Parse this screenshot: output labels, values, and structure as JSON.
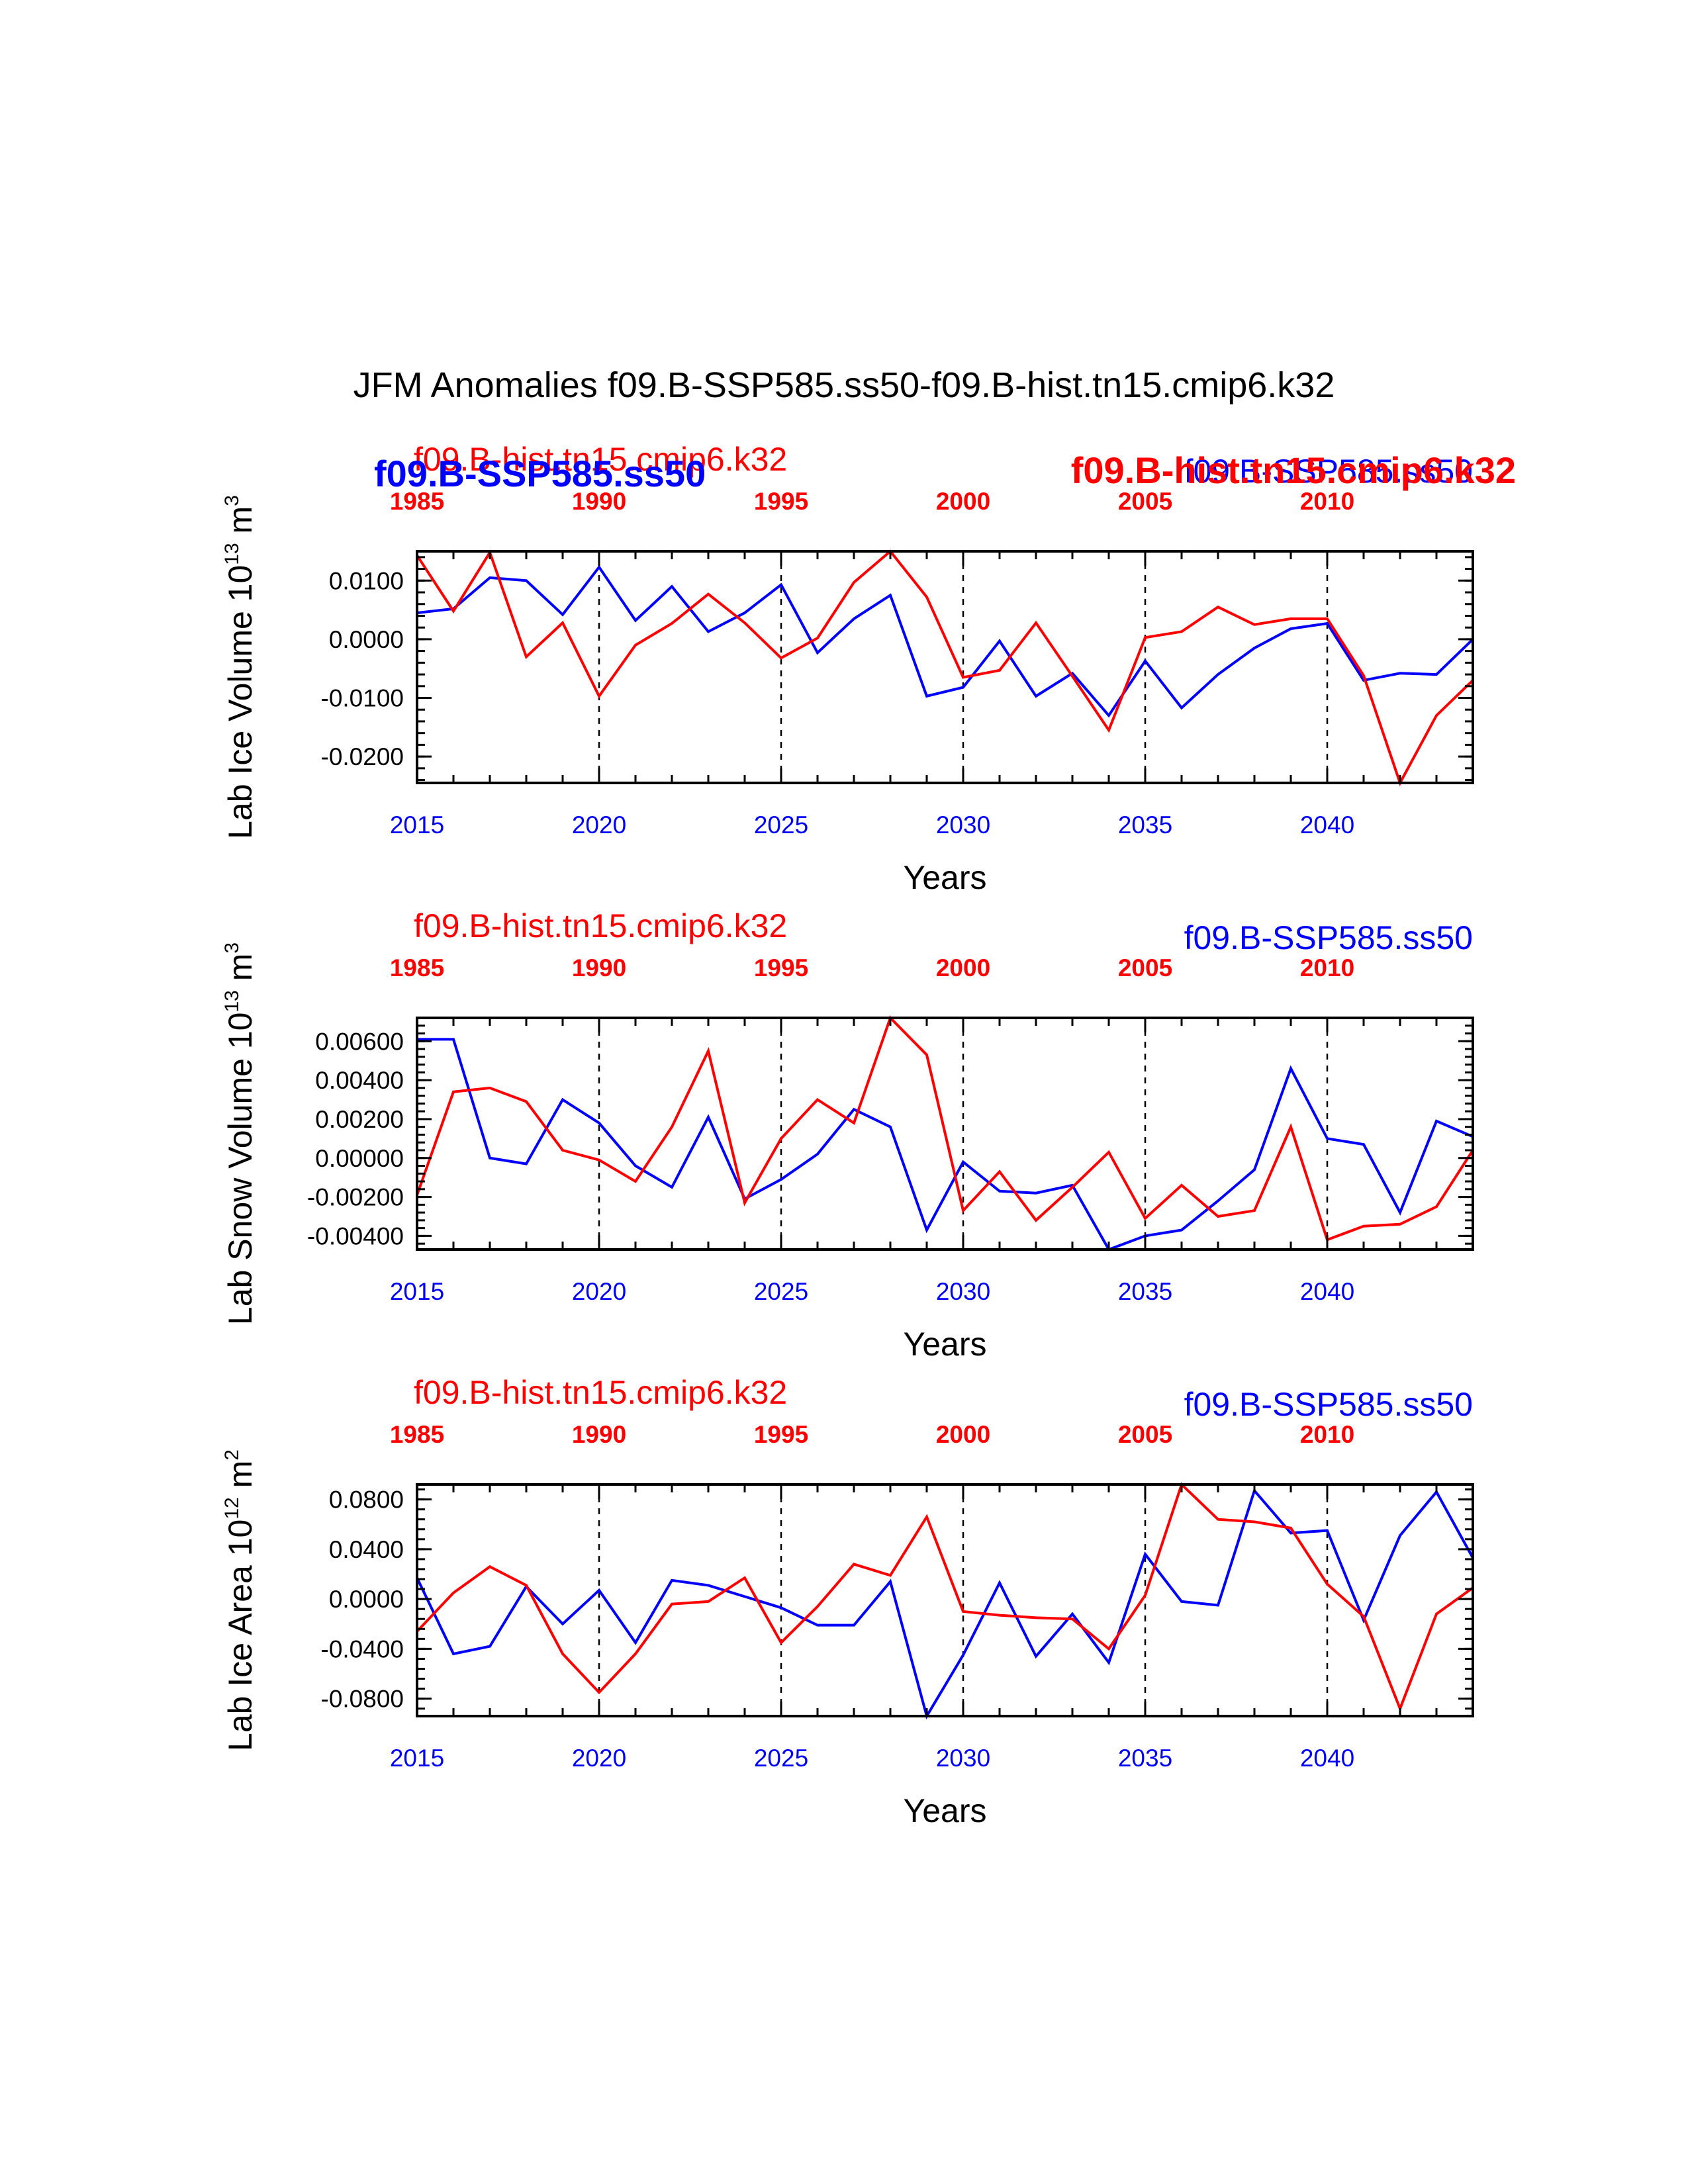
{
  "title": "JFM Anomalies f09.B-SSP585.ss50-f09.B-hist.tn15.cmip6.k32",
  "colors": {
    "ssp": "#0000ff",
    "hist": "#ff0000"
  },
  "chart_data": [
    {
      "type": "line",
      "ylabel_main": "Lab Ice Volume 10",
      "ylabel_exp": "13",
      "ylabel_unit": " m",
      "ylabel_unit_exp": "3",
      "xlabel": "Years",
      "ylim": [
        -0.0245,
        0.015
      ],
      "yticks": [
        0.01,
        0.0,
        -0.01,
        -0.02
      ],
      "ytick_labels": [
        "0.0100",
        "0.0000",
        "-0.0100",
        "-0.0200"
      ],
      "bottom_ticks": [
        "2015",
        "2020",
        "2025",
        "2030",
        "2035",
        "2040"
      ],
      "top_ticks": [
        "1985",
        "1990",
        "1995",
        "2000",
        "2005",
        "2010"
      ],
      "label_hist": "f09.B-hist.tn15.cmip6.k32",
      "label_ssp": "f09.B-SSP585.ss50",
      "label_ssp_bold": "f09.B-SSP585.ss50",
      "label_hist_bold": "f09.B-hist.tn15.cmip6.k32",
      "x_bottom": [
        2015,
        2016,
        2017,
        2018,
        2019,
        2020,
        2021,
        2022,
        2023,
        2024,
        2025,
        2026,
        2027,
        2028,
        2029,
        2030,
        2031,
        2032,
        2033,
        2034,
        2035,
        2036,
        2037,
        2038,
        2039,
        2040,
        2041,
        2042,
        2043,
        2044
      ],
      "series": [
        {
          "name": "f09.B-SSP585.ss50",
          "color": "#0000ff",
          "values": [
            0.0045,
            0.0052,
            0.0105,
            0.01,
            0.0042,
            0.0123,
            0.0032,
            0.009,
            0.0013,
            0.0045,
            0.0093,
            -0.0023,
            0.0035,
            0.0075,
            -0.0097,
            -0.0082,
            -0.0003,
            -0.0097,
            -0.0058,
            -0.013,
            -0.0037,
            -0.0117,
            -0.006,
            -0.0015,
            0.0018,
            0.0027,
            -0.007,
            -0.0058,
            -0.006,
            0.0
          ]
        },
        {
          "name": "f09.B-hist.tn15.cmip6.k32",
          "color": "#ff0000",
          "values": [
            0.0143,
            0.0048,
            0.0148,
            -0.003,
            0.0028,
            -0.0097,
            -0.001,
            0.0027,
            0.0077,
            0.0028,
            -0.0032,
            0.0002,
            0.0097,
            0.015,
            0.0072,
            -0.0065,
            -0.0053,
            0.0028,
            -0.0063,
            -0.0155,
            0.0003,
            0.0013,
            0.0055,
            0.0025,
            0.0035,
            0.0035,
            -0.0062,
            -0.0245,
            -0.013,
            -0.007
          ]
        }
      ]
    },
    {
      "type": "line",
      "ylabel_main": "Lab Snow Volume 10",
      "ylabel_exp": "13",
      "ylabel_unit": " m",
      "ylabel_unit_exp": "3",
      "xlabel": "Years",
      "ylim": [
        -0.0047,
        0.0072
      ],
      "yticks": [
        0.006,
        0.004,
        0.002,
        0.0,
        -0.002,
        -0.004
      ],
      "ytick_labels": [
        "0.00600",
        "0.00400",
        "0.00200",
        "0.00000",
        "-0.00200",
        "-0.00400"
      ],
      "bottom_ticks": [
        "2015",
        "2020",
        "2025",
        "2030",
        "2035",
        "2040"
      ],
      "top_ticks": [
        "1985",
        "1990",
        "1995",
        "2000",
        "2005",
        "2010"
      ],
      "label_hist": "f09.B-hist.tn15.cmip6.k32",
      "label_ssp": "f09.B-SSP585.ss50",
      "x_bottom": [
        2015,
        2016,
        2017,
        2018,
        2019,
        2020,
        2021,
        2022,
        2023,
        2024,
        2025,
        2026,
        2027,
        2028,
        2029,
        2030,
        2031,
        2032,
        2033,
        2034,
        2035,
        2036,
        2037,
        2038,
        2039,
        2040,
        2041,
        2042,
        2043,
        2044
      ],
      "series": [
        {
          "name": "f09.B-SSP585.ss50",
          "color": "#0000ff",
          "values": [
            0.0061,
            0.0061,
            0.0,
            -0.0003,
            0.003,
            0.0018,
            -0.0004,
            -0.0015,
            0.0021,
            -0.0021,
            -0.0011,
            0.0002,
            0.0025,
            0.0016,
            -0.0037,
            -0.0002,
            -0.0017,
            -0.0018,
            -0.0014,
            -0.0047,
            -0.004,
            -0.0037,
            -0.0022,
            -0.0006,
            0.0046,
            0.001,
            0.0007,
            -0.0028,
            0.0019,
            0.0011
          ]
        },
        {
          "name": "f09.B-hist.tn15.cmip6.k32",
          "color": "#ff0000",
          "values": [
            -0.0019,
            0.0034,
            0.0036,
            0.0029,
            0.0004,
            -0.0001,
            -0.0012,
            0.0016,
            0.0055,
            -0.0023,
            0.001,
            0.003,
            0.0018,
            0.0072,
            0.0053,
            -0.0027,
            -0.0007,
            -0.0032,
            -0.0015,
            0.0003,
            -0.0031,
            -0.0014,
            -0.003,
            -0.0027,
            0.0016,
            -0.0042,
            -0.0035,
            -0.0034,
            -0.0025,
            0.0004
          ]
        }
      ]
    },
    {
      "type": "line",
      "ylabel_main": "Lab Ice Area 10",
      "ylabel_exp": "12",
      "ylabel_unit": " m",
      "ylabel_unit_exp": "2",
      "xlabel": "Years",
      "ylim": [
        -0.094,
        0.092
      ],
      "yticks": [
        0.08,
        0.04,
        0.0,
        -0.04,
        -0.08
      ],
      "ytick_labels": [
        "0.0800",
        "0.0400",
        "0.0000",
        "-0.0400",
        "-0.0800"
      ],
      "bottom_ticks": [
        "2015",
        "2020",
        "2025",
        "2030",
        "2035",
        "2040"
      ],
      "top_ticks": [
        "1985",
        "1990",
        "1995",
        "2000",
        "2005",
        "2010"
      ],
      "label_hist": "f09.B-hist.tn15.cmip6.k32",
      "label_ssp": "f09.B-SSP585.ss50",
      "x_bottom": [
        2015,
        2016,
        2017,
        2018,
        2019,
        2020,
        2021,
        2022,
        2023,
        2024,
        2025,
        2026,
        2027,
        2028,
        2029,
        2030,
        2031,
        2032,
        2033,
        2034,
        2035,
        2036,
        2037,
        2038,
        2039,
        2040,
        2041,
        2042,
        2043,
        2044
      ],
      "series": [
        {
          "name": "f09.B-SSP585.ss50",
          "color": "#0000ff",
          "values": [
            0.017,
            -0.044,
            -0.038,
            0.01,
            -0.02,
            0.007,
            -0.035,
            0.015,
            0.011,
            0.002,
            -0.007,
            -0.021,
            -0.021,
            0.014,
            -0.094,
            -0.045,
            0.013,
            -0.046,
            -0.012,
            -0.051,
            0.036,
            -0.002,
            -0.005,
            0.087,
            0.053,
            0.055,
            -0.017,
            0.051,
            0.086,
            0.033
          ]
        },
        {
          "name": "f09.B-hist.tn15.cmip6.k32",
          "color": "#ff0000",
          "values": [
            -0.026,
            0.005,
            0.026,
            0.011,
            -0.044,
            -0.075,
            -0.044,
            -0.004,
            -0.002,
            0.017,
            -0.035,
            -0.006,
            0.028,
            0.019,
            0.066,
            -0.01,
            -0.013,
            -0.015,
            -0.016,
            -0.04,
            0.003,
            0.092,
            0.064,
            0.062,
            0.057,
            0.012,
            -0.014,
            -0.088,
            -0.012,
            0.009
          ]
        }
      ]
    }
  ]
}
